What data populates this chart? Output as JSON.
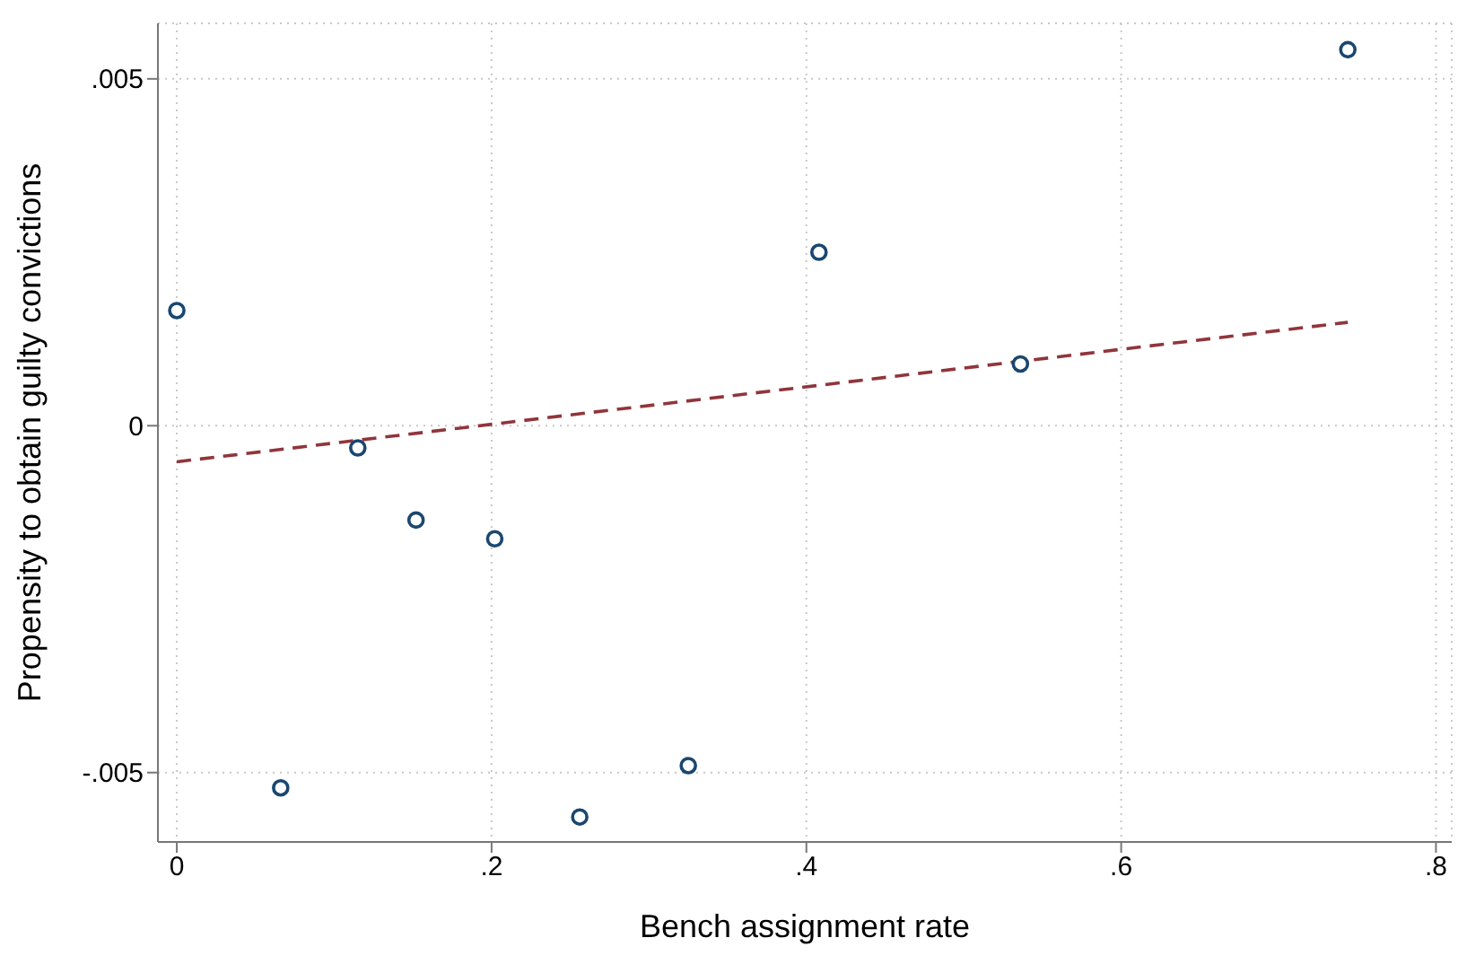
{
  "chart_data": {
    "type": "scatter",
    "xlabel": "Bench assignment rate",
    "ylabel": "Propensity to obtain guilty convictions",
    "xlim": [
      -0.012,
      0.81
    ],
    "ylim": [
      -0.006,
      0.0058
    ],
    "xticks": [
      0,
      {
        "value": 0.2,
        "label": ".2"
      },
      {
        "value": 0.4,
        "label": ".4"
      },
      {
        "value": 0.6,
        "label": ".6"
      },
      {
        "value": 0.8,
        "label": ".8"
      }
    ],
    "yticks": [
      {
        "value": -0.005,
        "label": "-.005"
      },
      0,
      {
        "value": 0.005,
        "label": ".005"
      }
    ],
    "grid": true,
    "marker": "circle",
    "series": [
      {
        "type": "scatter",
        "color": "#1a476f",
        "x": [
          0,
          0.066,
          0.115,
          0.152,
          0.202,
          0.256,
          0.325,
          0.408,
          0.536,
          0.744
        ],
        "values": [
          0.00166,
          -0.00522,
          -0.00032,
          -0.00136,
          -0.00163,
          -0.00564,
          -0.0049,
          0.0025,
          0.00089,
          0.00542
        ]
      },
      {
        "type": "line",
        "color": "#90353b",
        "line_style": "dashed",
        "marker": "none",
        "x": [
          0,
          0.744
        ],
        "values": [
          -0.00052,
          0.00149
        ]
      }
    ]
  }
}
